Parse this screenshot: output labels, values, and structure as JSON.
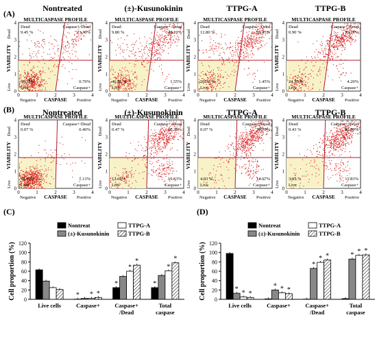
{
  "panels": {
    "A": {
      "label": "(A)",
      "plot_title": "MULTICASPASE PROFILE",
      "ylabel": "VIABILITY",
      "xlabel": "CASPASE",
      "quad_labels": {
        "ul": "Dead",
        "ur": "Caspase+/Dead",
        "ll": "Live",
        "lr": "Caspase+"
      },
      "x_ends": {
        "neg": "Negative",
        "pos": "Positive"
      },
      "y_ends": {
        "top": "Dead",
        "bottom": "Live"
      },
      "y_ticks": [
        "0",
        "1",
        "2",
        "3",
        "4"
      ],
      "x_ticks": [
        "0",
        "1",
        "2",
        "3",
        "4"
      ],
      "samples": [
        {
          "title": "Nontreated",
          "ul": "9.45 %",
          "ur": "23.30%",
          "ll": "66.55%",
          "lr": "0.70%"
        },
        {
          "title": "(±)-Kusunokinin",
          "ul": "9.80 %",
          "ur": "48.10%",
          "ll": "40.55 %",
          "lr": "1.55%"
        },
        {
          "title": "TTPG-A",
          "ul": "12.80 %",
          "ur": "59.45%",
          "ll": "26.30 %",
          "lr": "1.45%"
        },
        {
          "title": "TTPG-B",
          "ul": "0.90 %",
          "ur": "70.15%",
          "ll": "24.75 %",
          "lr": "4.20%"
        }
      ]
    },
    "B": {
      "label": "(B)",
      "plot_title": "MULTICASPASE PROFILE",
      "ylabel": "VIABILITY",
      "xlabel": "CASPASE",
      "samples": [
        {
          "title": "Nontreated",
          "ul": "0.07 %",
          "ur": "0.40%",
          "ll": "98.40%",
          "lr": "1.13%"
        },
        {
          "title": "(±)-Kusunokinin",
          "ul": "0.47 %",
          "ur": "66.30%",
          "ll": "13.60%",
          "lr": "19.63%"
        },
        {
          "title": "TTPG-A",
          "ul": "0.07 %",
          "ur": "78.70%",
          "ll": "4.83 %",
          "lr": "14.07%"
        },
        {
          "title": "TTPG-B",
          "ul": "0.43 %",
          "ur": "83.90%",
          "ll": "3.83 %",
          "lr": "11.83%"
        }
      ]
    }
  },
  "chart_data": [
    {
      "panel": "(C)",
      "type": "bar",
      "ylabel": "Cell proportion (%)",
      "ylim": [
        0,
        120
      ],
      "yticks": [
        0,
        20,
        40,
        60,
        80,
        100,
        120
      ],
      "categories": [
        "Live cells",
        "Caspase+",
        "Caspase+\n/Dead",
        "Total\ncaspase"
      ],
      "legend": [
        "Nontreat",
        "(±)-Kusunokinin",
        "TTPG-A",
        "TTPG-B"
      ],
      "series": [
        {
          "name": "Nontreat",
          "values": [
            63,
            0.5,
            25,
            25
          ]
        },
        {
          "name": "(±)-Kusunokinin",
          "values": [
            39,
            2,
            49,
            51
          ]
        },
        {
          "name": "TTPG-A",
          "values": [
            25,
            2,
            60,
            61
          ]
        },
        {
          "name": "TTPG-B",
          "values": [
            21,
            4,
            73,
            78
          ]
        }
      ],
      "stars": [
        [
          false,
          true,
          true,
          true
        ],
        [
          false,
          false,
          false,
          false
        ],
        [
          false,
          true,
          true,
          true
        ],
        [
          false,
          true,
          true,
          true
        ]
      ]
    },
    {
      "panel": "(D)",
      "type": "bar",
      "ylabel": "Cell proportion (%)",
      "ylim": [
        0,
        120
      ],
      "yticks": [
        0,
        20,
        40,
        60,
        80,
        100,
        120
      ],
      "categories": [
        "Live cells",
        "Caspase+",
        "Caspase+\n/Dead",
        "Total\ncaspase"
      ],
      "legend": [
        "Nontreat",
        "(±)-Kusunokinin",
        "TTPG-A",
        "TTPG-B"
      ],
      "series": [
        {
          "name": "Nontreat",
          "values": [
            98,
            1,
            0.5,
            1.5
          ]
        },
        {
          "name": "(±)-Kusunokinin",
          "values": [
            13,
            20,
            66,
            86
          ]
        },
        {
          "name": "TTPG-A",
          "values": [
            5,
            14,
            79,
            94
          ]
        },
        {
          "name": "TTPG-B",
          "values": [
            4,
            12,
            84,
            95
          ]
        }
      ],
      "stars": [
        [
          false,
          false,
          false,
          false
        ],
        [
          true,
          true,
          true,
          true
        ],
        [
          true,
          true,
          true,
          true
        ],
        [
          true,
          true,
          true,
          true
        ]
      ]
    }
  ]
}
